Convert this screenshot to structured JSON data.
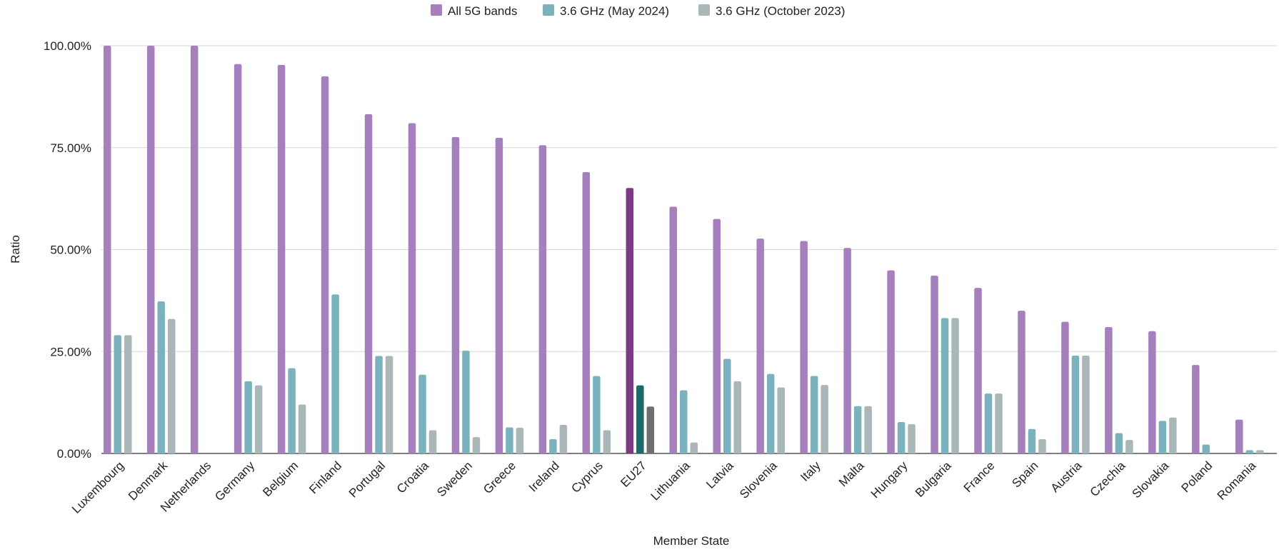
{
  "chart_data": {
    "type": "bar",
    "title": "",
    "xlabel": "Member State",
    "ylabel": "Ratio",
    "ylim": [
      0,
      1
    ],
    "yticks": [
      0,
      0.25,
      0.5,
      0.75,
      1.0
    ],
    "ytick_labels": [
      "0.00%",
      "25.00%",
      "50.00%",
      "75.00%",
      "100.00%"
    ],
    "grid": true,
    "legend_position": "top-center",
    "categories": [
      "Luxembourg",
      "Denmark",
      "Netherlands",
      "Germany",
      "Belgium",
      "Finland",
      "Portugal",
      "Croatia",
      "Sweden",
      "Greece",
      "Ireland",
      "Cyprus",
      "EU27",
      "Lithuania",
      "Latvia",
      "Slovenia",
      "Italy",
      "Malta",
      "Hungary",
      "Bulgaria",
      "France",
      "Spain",
      "Austria",
      "Czechia",
      "Slovakia",
      "Poland",
      "Romania"
    ],
    "highlight_category": "EU27",
    "series": [
      {
        "name": "All 5G bands",
        "color": "#a67fbd",
        "highlight_color": "#7b3a82",
        "values": [
          1.0,
          1.0,
          1.0,
          0.955,
          0.953,
          0.925,
          0.832,
          0.81,
          0.776,
          0.774,
          0.756,
          0.69,
          0.651,
          0.605,
          0.575,
          0.527,
          0.521,
          0.504,
          0.449,
          0.436,
          0.406,
          0.35,
          0.323,
          0.31,
          0.3,
          0.217,
          0.083
        ]
      },
      {
        "name": "3.6 GHz (May 2024)",
        "color": "#7ab3be",
        "highlight_color": "#1c6b6b",
        "values": [
          0.29,
          0.373,
          0.0,
          0.177,
          0.209,
          0.39,
          0.239,
          0.193,
          0.252,
          0.064,
          0.035,
          0.19,
          0.167,
          0.155,
          0.232,
          0.195,
          0.19,
          0.116,
          0.077,
          0.332,
          0.147,
          0.06,
          0.24,
          0.05,
          0.08,
          0.022,
          0.008
        ]
      },
      {
        "name": "3.6 GHz (October 2023)",
        "color": "#a9b7b8",
        "highlight_color": "#6f6f6f",
        "values": [
          0.29,
          0.33,
          0.0,
          0.167,
          0.12,
          0.0,
          0.239,
          0.057,
          0.04,
          0.063,
          0.07,
          0.057,
          0.115,
          0.027,
          0.177,
          0.162,
          0.168,
          0.116,
          0.072,
          0.332,
          0.147,
          0.035,
          0.24,
          0.033,
          0.088,
          0.0,
          0.008
        ]
      }
    ]
  },
  "colors": {
    "grid": "#d6d6d6",
    "axis": "#333333",
    "text": "#222222"
  }
}
